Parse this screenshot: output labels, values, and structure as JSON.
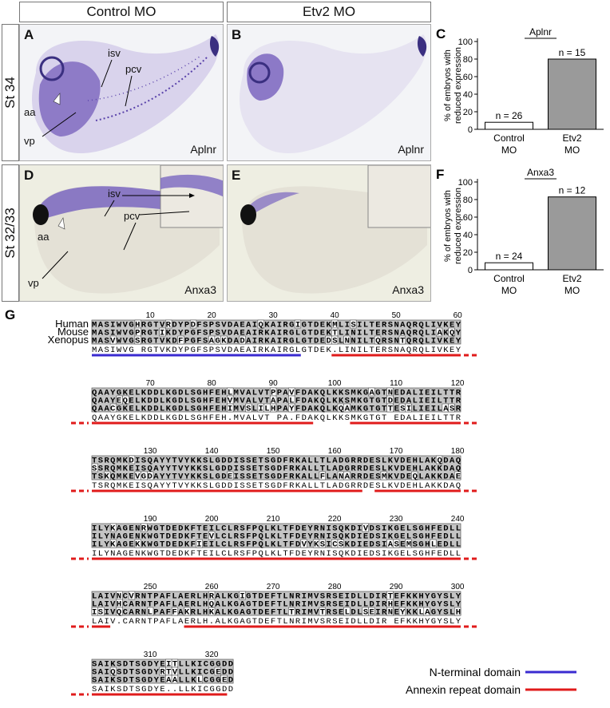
{
  "columns": {
    "control": "Control MO",
    "etv2": "Etv2 MO"
  },
  "rows": {
    "top": "St 34",
    "bottom": "St 32/33"
  },
  "panels": {
    "A": {
      "letter": "A",
      "probe": "Aplnr",
      "labels": {
        "isv": "isv",
        "pcv": "pcv",
        "aa": "aa",
        "vp": "vp"
      }
    },
    "B": {
      "letter": "B",
      "probe": "Aplnr"
    },
    "D": {
      "letter": "D",
      "probe": "Anxa3",
      "labels": {
        "isv": "isv",
        "pcv": "pcv",
        "aa": "aa",
        "vp": "vp"
      }
    },
    "E": {
      "letter": "E",
      "probe": "Anxa3"
    }
  },
  "chart_data": [
    {
      "letter": "C",
      "type": "bar",
      "title": "Aplnr",
      "ylabel": "% of embryos with reduced expression",
      "categories": [
        "Control MO",
        "Etv2 MO"
      ],
      "category_lines": [
        [
          "Control",
          "MO"
        ],
        [
          "Etv2",
          "MO"
        ]
      ],
      "values": [
        8,
        80
      ],
      "bar_labels": [
        "n = 26",
        "n = 15"
      ],
      "bar_colors": [
        "#ffffff",
        "#9a9a9a"
      ],
      "ylim": [
        0,
        100
      ],
      "yticks": [
        0,
        20,
        40,
        60,
        80,
        100
      ]
    },
    {
      "letter": "F",
      "type": "bar",
      "title": "Anxa3",
      "ylabel": "% of embryos with reduced expression",
      "categories": [
        "Control MO",
        "Etv2 MO"
      ],
      "category_lines": [
        [
          "Control",
          "MO"
        ],
        [
          "Etv2",
          "MO"
        ]
      ],
      "values": [
        8,
        83
      ],
      "bar_labels": [
        "n = 24",
        "n = 12"
      ],
      "bar_colors": [
        "#ffffff",
        "#9a9a9a"
      ],
      "ylim": [
        0,
        100
      ],
      "yticks": [
        0,
        20,
        40,
        60,
        80,
        100
      ]
    }
  ],
  "alignment": {
    "letter": "G",
    "species": [
      "Human",
      "Mouse",
      "Xenopus"
    ],
    "blocks": [
      {
        "ticks": [
          "10",
          "20",
          "30",
          "40",
          "50",
          "60"
        ],
        "seqs": [
          "MASIWVGHRGTVRDYPDFSPSVDAEAIQKAIRGIGTDEKMLISILTERSNAQRQLIVKEY",
          "MASIWVGPRGTIKDYPGFSPSVDAEAIRKAIRGLGTDEKTLINILTERSNAQRQLIAKQY",
          "MASVWVGSRGTVKDFPGFSAGKDADAIRKAIRGLGTDEDSLNNILTQRSNTQRQLIVKEY",
          "MASIWVG RGTVKDYPGFSPSVDAEAIRKAIRGLGTDEK.LINILTERSNAQRQLIVKEY"
        ]
      },
      {
        "ticks": [
          "70",
          "80",
          "90",
          "100",
          "110",
          "120"
        ],
        "seqs": [
          "QAAYGKELKDDLKGDLSGHFEHLMVALVTPPAVFDAKQLKKSMKGAGTNEDALIEILTTR",
          "QAAYEQELKDDLKGDLSGHFEHVMVALVTAPALFDAKQLKKSMKGTGTDEDALIEILTTR",
          "QAACGKELKDDLKGDLSGHFEHIMVSLILHPAYFDAKQLKQAMKGTGTTESILIEILASR",
          "QAAYGKELKDDLKGDLSGHFEH.MVALVT PA.FDAKQLKKSMKGTGT EDALIEILTTR"
        ]
      },
      {
        "ticks": [
          "130",
          "140",
          "150",
          "160",
          "170",
          "180"
        ],
        "seqs": [
          "TSRQMKDISQAYYTVYKKSLGDDISSETSGDFRKALLTLADGRRDESLKVDEHLAKQDAQ",
          "SSRQMKEISQAYYTVYKKSLGDDISSETSGDFRKALLTLADGRRDESLKVDEHLAKKDAQ",
          "TSKQMKEVGDAYYTVYKKSLGDEISSETSGDFRKALLFLANARRDESMKVDEQLAKKDAE",
          "TSRQMKEISQAYYTVYKKSLGDDISSETSGDFRKALLTLADGRRDESLKVDEHLAKKDAQ"
        ]
      },
      {
        "ticks": [
          "190",
          "200",
          "210",
          "220",
          "230",
          "240"
        ],
        "seqs": [
          "ILYKAGENRWGTDEDKFTEILCLRSFPQLKLTFDEYRNISQKDIVDSIKGELSGHFEDLL",
          "ILYNAGENKWGTDEDKFTEVLCLRSFPQLKLTFDEYRNISQKDIEDSIKGELSGHFEDLL",
          "ILYKAGEKKWGTDEDKFIEILCLRSFPQLKLTFDVYKSICSKDIEDSIASEMSGHLEDLL",
          "ILYNAGENKWGTDEDKFTEILCLRSFPQLKLTFDEYRNISQKDIEDSIKGELSGHFEDLL"
        ]
      },
      {
        "ticks": [
          "250",
          "260",
          "270",
          "280",
          "290",
          "300"
        ],
        "seqs": [
          "LAIVNCVRNTPAFLAERLHRALKGIGTDEFTLNRIMVSRSEIDLLDIRTEFKKHYGYSLY",
          "LAIVHCARNTPAFLAERLHQALKGAGTDEFTLNRIMVSRSEIDLLDIRHEFKKHYGYSLY",
          "ISIVQCARNLPAFFAKRLHKALKGAGTDEFTLTRIMVTRSELDLSEIRNEYKKLAGYSLH",
          "LAIV.CARNTPAFLAERLH.ALKGAGTDEFTLNRIMVSRSEIDLLDIR EFKKHYGYSLY"
        ]
      },
      {
        "ticks": [
          "310",
          "320"
        ],
        "seqs": [
          "SAIKSDTSGDYEITLLKICGGDD",
          "SAIQSDTSGDYRTVLLKICGEDD",
          "SAIKSDTSGDYEAALLKLCGGED",
          "SAIKSDTSGDYE..LLKICGGDD"
        ]
      }
    ],
    "legend": [
      {
        "label": "N-terminal domain",
        "color": "#3a2bd0"
      },
      {
        "label": "Annexin repeat domain",
        "color": "#e01b1b"
      }
    ]
  }
}
